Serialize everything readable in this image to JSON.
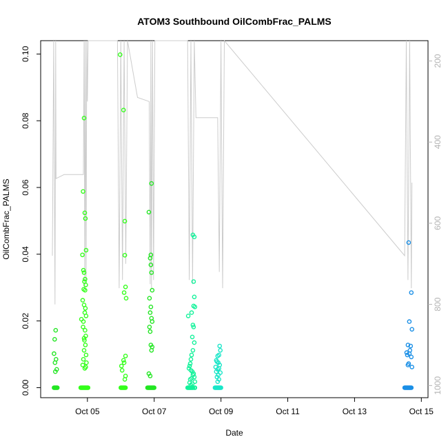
{
  "chart_data": {
    "type": "scatter",
    "title": "ATOM3 Southbound OilCombFrac_PALMS",
    "xlabel": "Date",
    "ylabel": "OilCombFrac_PALMS",
    "x_unit": "days in October (day-of-month, fractional)",
    "xlim": [
      3.6,
      15.2
    ],
    "ylim": [
      -0.003,
      0.104
    ],
    "x_ticks": [
      5,
      7,
      9,
      11,
      13,
      15
    ],
    "x_tick_labels": [
      "Oct 05",
      "Oct 07",
      "Oct 09",
      "Oct 11",
      "Oct 13",
      "Oct 15"
    ],
    "y_ticks": [
      0.0,
      0.02,
      0.04,
      0.06,
      0.08,
      0.1
    ],
    "y_tick_labels": [
      "0.00",
      "0.02",
      "0.04",
      "0.06",
      "0.08",
      "0.10"
    ],
    "secondary_axis": {
      "side": "right",
      "reversed": true,
      "range": [
        150,
        1030
      ],
      "ticks": [
        200,
        400,
        600,
        800,
        1000
      ],
      "tick_labels": [
        "200",
        "400",
        "600",
        "800",
        "1000"
      ],
      "color": "#b3b3b3"
    },
    "grid": false,
    "colors": {
      "green": "#22e622",
      "bright_green": "#33ff1a",
      "teal_green": "#12f29a",
      "aqua": "#19e6c8",
      "blue": "#1a8fe6",
      "altitude_line": "#cccccc"
    },
    "series": [
      {
        "color": "#22e622",
        "x": [
          4.0,
          4.02,
          4.04,
          4.06,
          4.08,
          4.1,
          4.0,
          4.02,
          4.05,
          4.03,
          4.06,
          4.04,
          4.08
        ],
        "y": [
          0.0,
          0.0,
          0.0,
          0.0,
          0.0,
          0.0,
          0.0102,
          0.0145,
          0.0172,
          0.0075,
          0.0085,
          0.0048,
          0.0055
        ]
      },
      {
        "color": "#33ff1a",
        "x": [
          4.8,
          4.82,
          4.84,
          4.86,
          4.88,
          4.9,
          4.92,
          4.94,
          4.96,
          4.98,
          5.0,
          5.02,
          4.82,
          4.9,
          4.87,
          4.92,
          4.94,
          4.96,
          4.85,
          4.88,
          4.9,
          4.93,
          4.91,
          4.95,
          4.89,
          4.93,
          4.86,
          4.9,
          4.94,
          4.92,
          4.96,
          4.88,
          4.87,
          4.93,
          4.95,
          4.91,
          4.94,
          4.9,
          4.96,
          4.88,
          4.97,
          4.86,
          4.95,
          4.92,
          4.9
        ],
        "y": [
          0.0,
          0.0,
          0.0,
          0.0,
          0.0,
          0.0,
          0.0,
          0.0,
          0.0,
          0.0,
          0.0,
          0.0,
          0.0205,
          0.0808,
          0.0588,
          0.0524,
          0.0507,
          0.0412,
          0.0398,
          0.0352,
          0.0345,
          0.0325,
          0.0318,
          0.0308,
          0.0295,
          0.0292,
          0.0262,
          0.0248,
          0.0238,
          0.0225,
          0.0215,
          0.0198,
          0.0182,
          0.0172,
          0.0155,
          0.0142,
          0.0128,
          0.0112,
          0.0098,
          0.0085,
          0.0075,
          0.0068,
          0.0062,
          0.0058,
          0.0148
        ]
      },
      {
        "color": "#33ff1a",
        "x": [
          6.0,
          6.02,
          6.04,
          6.06,
          6.08,
          6.1,
          6.12,
          6.14,
          5.98,
          6.08,
          6.12,
          6.12,
          6.14,
          6.1,
          6.16,
          6.14,
          6.08,
          6.1,
          6.02,
          6.04,
          6.14,
          6.12
        ],
        "y": [
          0.0,
          0.0,
          0.0,
          0.0,
          0.0,
          0.0,
          0.0,
          0.0,
          0.0998,
          0.0832,
          0.0499,
          0.0397,
          0.0302,
          0.0285,
          0.0268,
          0.0095,
          0.0082,
          0.0075,
          0.0065,
          0.0052,
          0.0035,
          0.0025
        ]
      },
      {
        "color": "#22e622",
        "x": [
          6.8,
          6.82,
          6.84,
          6.86,
          6.88,
          6.9,
          6.92,
          6.94,
          6.96,
          6.98,
          7.0,
          6.84,
          6.92,
          6.9,
          6.88,
          6.9,
          6.92,
          6.94,
          6.86,
          6.9,
          6.88,
          6.92,
          6.94,
          6.86,
          6.88,
          6.9,
          6.92,
          6.84,
          6.88,
          6.94
        ],
        "y": [
          0.0,
          0.0,
          0.0,
          0.0,
          0.0,
          0.0,
          0.0,
          0.0,
          0.0,
          0.0,
          0.0,
          0.0526,
          0.0612,
          0.0398,
          0.0388,
          0.0368,
          0.0345,
          0.0292,
          0.0268,
          0.0242,
          0.0225,
          0.0208,
          0.0198,
          0.0182,
          0.0168,
          0.0128,
          0.0112,
          0.0042,
          0.0035,
          0.0122
        ]
      },
      {
        "color": "#12f29a",
        "x": [
          8.0,
          8.02,
          8.04,
          8.06,
          8.08,
          8.1,
          8.12,
          8.14,
          8.16,
          8.2,
          8.22,
          8.16,
          8.18,
          8.2,
          8.2,
          8.18,
          8.22,
          8.12,
          8.16,
          8.18,
          8.02,
          8.14,
          8.2,
          8.16,
          8.12,
          8.1,
          8.08,
          8.06,
          8.04,
          8.1,
          8.14,
          8.18,
          8.16,
          8.2,
          8.12,
          8.08,
          8.22,
          8.06,
          8.14,
          8.1
        ],
        "y": [
          0.0,
          0.0,
          0.0,
          0.0,
          0.0,
          0.0,
          0.0,
          0.0,
          0.0,
          0.0,
          0.0,
          0.0458,
          0.0318,
          0.0452,
          0.0272,
          0.0245,
          0.0242,
          0.0225,
          0.0188,
          0.0182,
          0.0215,
          0.0152,
          0.0135,
          0.0112,
          0.0098,
          0.0085,
          0.0072,
          0.0065,
          0.0058,
          0.0052,
          0.0048,
          0.0042,
          0.0038,
          0.0032,
          0.0028,
          0.0025,
          0.0018,
          0.0015,
          0.0012,
          0.0008
        ]
      },
      {
        "color": "#19e6c8",
        "x": [
          8.82,
          8.84,
          8.86,
          8.88,
          8.9,
          8.92,
          8.94,
          8.96,
          8.98,
          9.0,
          8.96,
          8.98,
          8.94,
          8.9,
          8.86,
          8.88,
          8.92,
          8.96,
          8.84,
          8.94,
          8.9,
          8.86,
          8.98,
          8.92,
          8.88,
          8.94,
          8.9
        ],
        "y": [
          0.0,
          0.0,
          0.0,
          0.0,
          0.0,
          0.0,
          0.0,
          0.0,
          0.0,
          0.0,
          0.0125,
          0.0112,
          0.0098,
          0.0095,
          0.0082,
          0.0078,
          0.0075,
          0.0068,
          0.0062,
          0.0058,
          0.0055,
          0.0048,
          0.0045,
          0.0038,
          0.0032,
          0.0025,
          0.0018
        ]
      },
      {
        "color": "#1a8fe6",
        "x": [
          14.5,
          14.52,
          14.54,
          14.56,
          14.58,
          14.6,
          14.62,
          14.64,
          14.66,
          14.68,
          14.7,
          14.62,
          14.7,
          14.64,
          14.72,
          14.6,
          14.68,
          14.66,
          14.64,
          14.58,
          14.7,
          14.62,
          14.6,
          14.72,
          14.56
        ],
        "y": [
          0.0,
          0.0,
          0.0,
          0.0,
          0.0,
          0.0,
          0.0,
          0.0,
          0.0,
          0.0,
          0.0,
          0.0435,
          0.0285,
          0.0198,
          0.0175,
          0.0128,
          0.0125,
          0.0112,
          0.0102,
          0.0098,
          0.0092,
          0.0072,
          0.0068,
          0.0062,
          0.0105
        ]
      }
    ],
    "altitude_track": {
      "color": "#cccccc",
      "x": [
        3.95,
        3.99,
        4.01,
        4.03,
        4.05,
        4.06,
        4.3,
        4.88,
        4.9,
        4.92,
        4.94,
        4.96,
        4.98,
        5.0,
        5.02,
        5.05,
        5.9,
        5.95,
        6.0,
        6.05,
        6.1,
        6.15,
        6.2,
        6.5,
        6.85,
        6.88,
        6.9,
        6.92,
        6.95,
        6.98,
        7.02,
        7.05,
        7.4,
        8.0,
        8.05,
        8.1,
        8.15,
        8.2,
        8.25,
        8.9,
        8.95,
        9.0,
        9.05,
        9.1,
        14.5,
        14.55,
        14.6,
        14.65,
        14.7,
        14.72
      ],
      "y": [
        680,
        150,
        490,
        800,
        150,
        490,
        480,
        480,
        150,
        760,
        150,
        740,
        150,
        300,
        150,
        150,
        150,
        760,
        150,
        740,
        150,
        700,
        150,
        290,
        300,
        750,
        150,
        760,
        150,
        740,
        150,
        150,
        150,
        150,
        740,
        150,
        750,
        150,
        340,
        340,
        720,
        150,
        760,
        150,
        680,
        150,
        740,
        150,
        760,
        500
      ]
    }
  }
}
